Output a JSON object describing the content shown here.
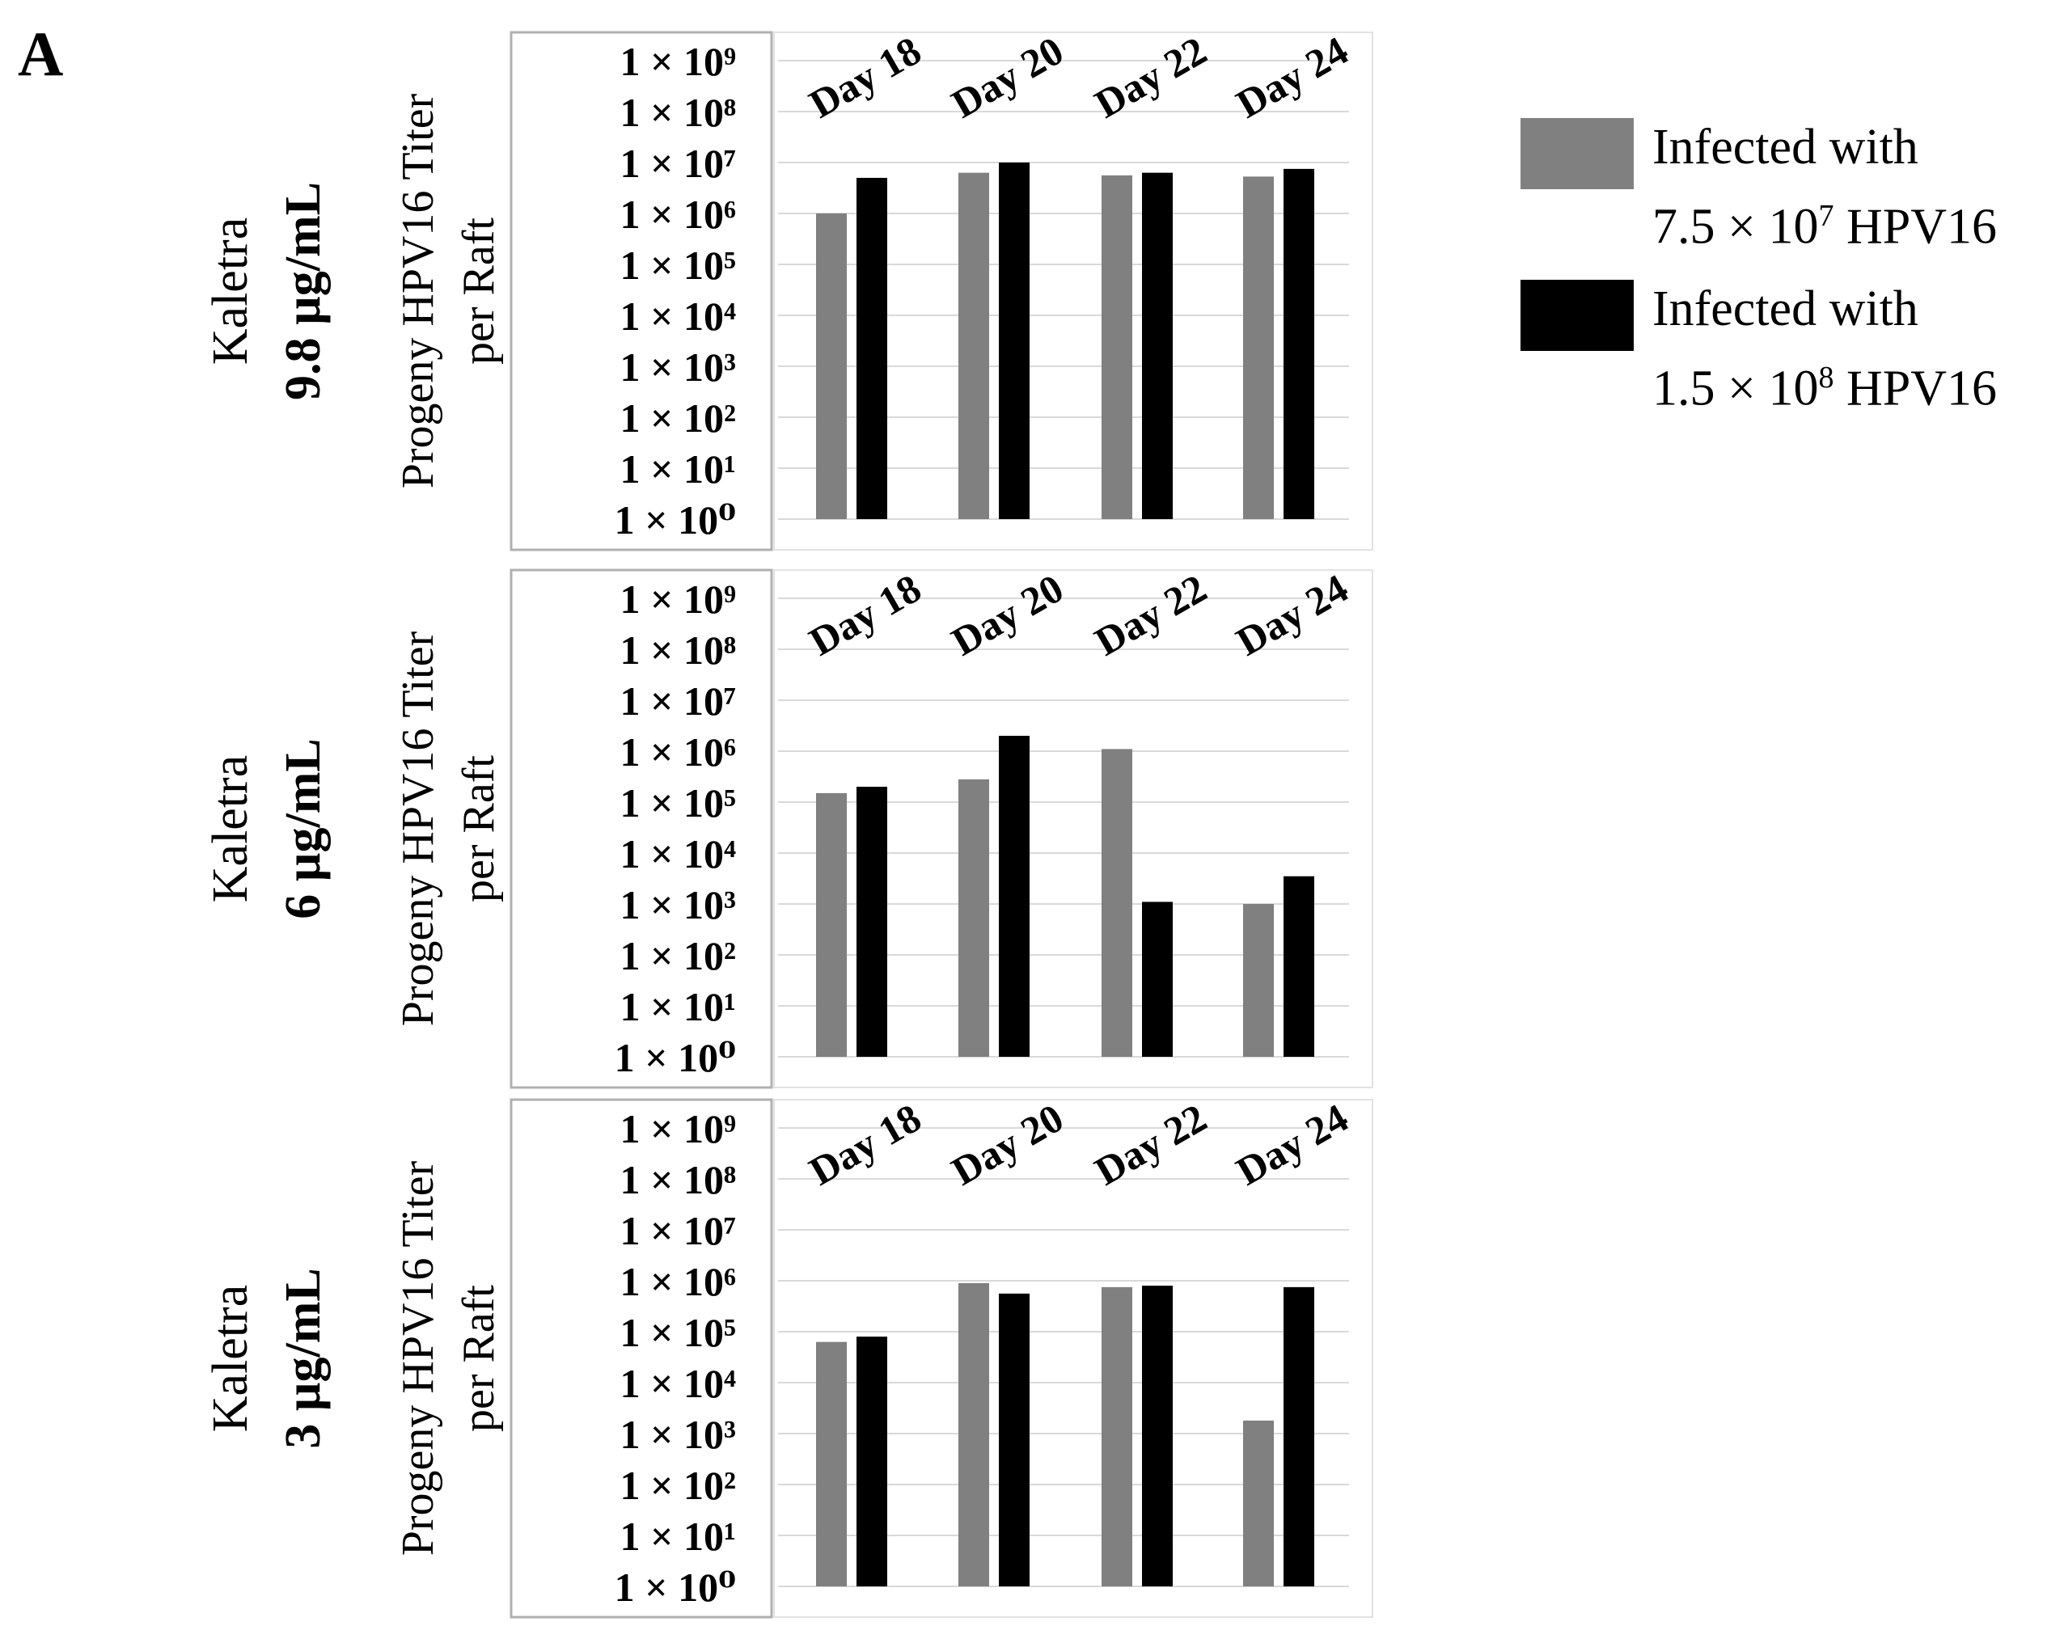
{
  "panel_label": "A",
  "legend": {
    "items": [
      {
        "line1": "Infected with",
        "line2_prefix": "7.5 × 10",
        "line2_exp": "7",
        "line2_suffix": " HPV16",
        "color": "#808080"
      },
      {
        "line1": "Infected with",
        "line2_prefix": "1.5 × 10",
        "line2_exp": "8",
        "line2_suffix": " HPV16",
        "color": "#000000"
      }
    ]
  },
  "chart_data": [
    {
      "type": "bar",
      "panel_title": "Kaletra",
      "panel_subtitle": "9.8 µg/mL",
      "ylabel": "Progeny HPV16 Titer",
      "ylabel2": "per Raft",
      "yscale": "log",
      "ylim": [
        1,
        1000000000
      ],
      "yticks": [
        "1 × 10⁰",
        "1 × 10¹",
        "1 × 10²",
        "1 × 10³",
        "1 × 10⁴",
        "1 × 10⁵",
        "1 × 10⁶",
        "1 × 10⁷",
        "1 × 10⁸",
        "1 × 10⁹"
      ],
      "categories": [
        "Day 18",
        "Day 20",
        "Day 22",
        "Day 24"
      ],
      "grid": true,
      "series": [
        {
          "name": "Infected with 7.5 × 10^7 HPV16",
          "color": "#808080",
          "values": [
            1000000,
            6300000,
            5600000,
            5300000
          ]
        },
        {
          "name": "Infected with 1.5 × 10^8 HPV16",
          "color": "#000000",
          "values": [
            5000000,
            10000000,
            6300000,
            7500000
          ]
        }
      ]
    },
    {
      "type": "bar",
      "panel_title": "Kaletra",
      "panel_subtitle": "6 µg/mL",
      "ylabel": "Progeny HPV16 Titer",
      "ylabel2": "per Raft",
      "yscale": "log",
      "ylim": [
        1,
        1000000000
      ],
      "yticks": [
        "1 × 10⁰",
        "1 × 10¹",
        "1 × 10²",
        "1 × 10³",
        "1 × 10⁴",
        "1 × 10⁵",
        "1 × 10⁶",
        "1 × 10⁷",
        "1 × 10⁸",
        "1 × 10⁹"
      ],
      "categories": [
        "Day 18",
        "Day 20",
        "Day 22",
        "Day 24"
      ],
      "grid": true,
      "series": [
        {
          "name": "Infected with 7.5 × 10^7 HPV16",
          "color": "#808080",
          "values": [
            150000,
            280000,
            1100000,
            1000
          ]
        },
        {
          "name": "Infected with 1.5 × 10^8 HPV16",
          "color": "#000000",
          "values": [
            200000,
            2000000,
            1100,
            3500
          ]
        }
      ]
    },
    {
      "type": "bar",
      "panel_title": "Kaletra",
      "panel_subtitle": "3 µg/mL",
      "ylabel": "Progeny HPV16 Titer",
      "ylabel2": "per Raft",
      "yscale": "log",
      "ylim": [
        1,
        1000000000
      ],
      "yticks": [
        "1 × 10⁰",
        "1 × 10¹",
        "1 × 10²",
        "1 × 10³",
        "1 × 10⁴",
        "1 × 10⁵",
        "1 × 10⁶",
        "1 × 10⁷",
        "1 × 10⁸",
        "1 × 10⁹"
      ],
      "categories": [
        "Day 18",
        "Day 20",
        "Day 22",
        "Day 24"
      ],
      "grid": true,
      "series": [
        {
          "name": "Infected with 7.5 × 10^7 HPV16",
          "color": "#808080",
          "values": [
            63000,
            900000,
            750000,
            1800
          ]
        },
        {
          "name": "Infected with 1.5 × 10^8 HPV16",
          "color": "#000000",
          "values": [
            80000,
            560000,
            800000,
            750000
          ]
        }
      ]
    }
  ]
}
